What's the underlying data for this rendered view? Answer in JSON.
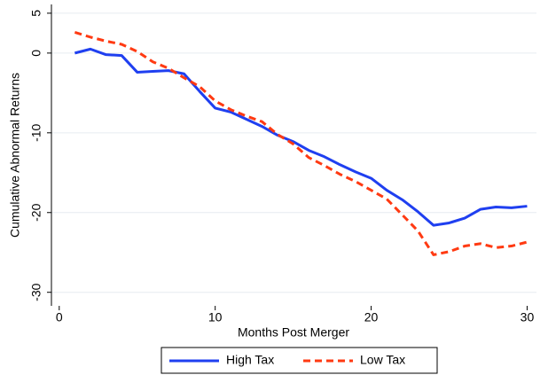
{
  "chart_data": {
    "type": "line",
    "xlabel": "Months Post Merger",
    "ylabel": "Cumulative Abnormal Returns",
    "x": [
      1,
      2,
      3,
      4,
      5,
      6,
      7,
      8,
      9,
      10,
      11,
      12,
      13,
      14,
      15,
      16,
      17,
      18,
      19,
      20,
      21,
      22,
      23,
      24,
      25,
      26,
      27,
      28,
      29,
      30
    ],
    "series": [
      {
        "name": "High Tax",
        "color": "#1f3ff0",
        "dash": false,
        "values": [
          0,
          0.5,
          -0.2,
          -0.3,
          -2.4,
          -2.3,
          -2.2,
          -2.6,
          -4.8,
          -6.9,
          -7.4,
          -8.3,
          -9.2,
          -10.3,
          -11.1,
          -12.2,
          -13.0,
          -14.0,
          -14.9,
          -15.7,
          -17.2,
          -18.4,
          -19.9,
          -21.6,
          -21.3,
          -20.7,
          -19.6,
          -19.3,
          -19.4,
          -19.2
        ]
      },
      {
        "name": "Low Tax",
        "color": "#ff3a12",
        "dash": true,
        "values": [
          2.6,
          2.0,
          1.5,
          1.1,
          0.2,
          -1.1,
          -1.9,
          -3.1,
          -4.2,
          -6.0,
          -7.1,
          -7.9,
          -8.6,
          -10.2,
          -11.4,
          -13.1,
          -14.1,
          -15.2,
          -16.1,
          -17.2,
          -18.3,
          -20.3,
          -22.3,
          -25.3,
          -24.9,
          -24.2,
          -23.9,
          -24.4,
          -24.2,
          -23.7
        ]
      }
    ],
    "xlim": [
      -0.5,
      30.6
    ],
    "xticks": [
      0,
      10,
      20,
      30
    ],
    "ylim": [
      -31.7,
      6.1
    ],
    "yticks": [
      5,
      0,
      -10,
      -20,
      -30
    ],
    "grid": true,
    "legend": "bottom"
  }
}
